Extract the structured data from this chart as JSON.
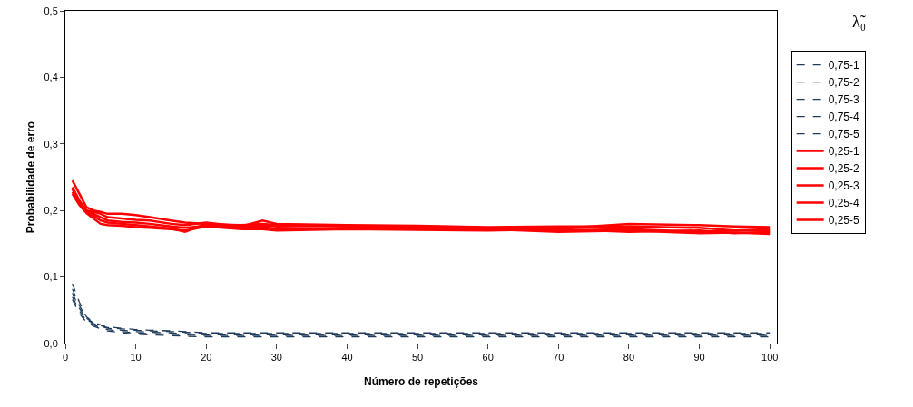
{
  "chart_data": {
    "type": "line",
    "xlabel": "Número de repetições",
    "ylabel": "Probabilidade de erro",
    "legend_title": "λ̃₀",
    "x": [
      1,
      2,
      3,
      4,
      5,
      6,
      8,
      10,
      12,
      15,
      17,
      20,
      25,
      28,
      30,
      40,
      50,
      60,
      70,
      80,
      90,
      95,
      100
    ],
    "xlim": [
      0,
      101
    ],
    "xticks": [
      0,
      10,
      20,
      30,
      40,
      50,
      60,
      70,
      80,
      90,
      100
    ],
    "ylim": [
      0,
      0.5
    ],
    "yticks": [
      {
        "value": 0,
        "label": "0,0"
      },
      {
        "value": 0.1,
        "label": "0,1"
      },
      {
        "value": 0.2,
        "label": "0,2"
      },
      {
        "value": 0.3,
        "label": "0,3"
      },
      {
        "value": 0.4,
        "label": "0,4"
      },
      {
        "value": 0.5,
        "label": "0,5"
      }
    ],
    "grid": false,
    "legend": "right",
    "marker": "none",
    "series": [
      {
        "name": "0,75-1",
        "color": "#1f3a5a",
        "line_style": "dashed",
        "values": [
          0.09,
          0.062,
          0.04,
          0.032,
          0.028,
          0.025,
          0.023,
          0.021,
          0.02,
          0.019,
          0.018,
          0.016,
          0.016,
          0.016,
          0.016,
          0.016,
          0.016,
          0.016,
          0.016,
          0.016,
          0.016,
          0.016,
          0.016
        ]
      },
      {
        "name": "0,75-2",
        "color": "#1f3a5a",
        "line_style": "dashed",
        "values": [
          0.082,
          0.057,
          0.038,
          0.031,
          0.027,
          0.024,
          0.022,
          0.02,
          0.019,
          0.018,
          0.017,
          0.015,
          0.015,
          0.015,
          0.015,
          0.015,
          0.015,
          0.015,
          0.015,
          0.015,
          0.015,
          0.015,
          0.015
        ]
      },
      {
        "name": "0,75-3",
        "color": "#1f3a5a",
        "line_style": "dashed",
        "values": [
          0.076,
          0.053,
          0.036,
          0.03,
          0.026,
          0.023,
          0.02,
          0.018,
          0.017,
          0.016,
          0.015,
          0.013,
          0.013,
          0.013,
          0.013,
          0.013,
          0.013,
          0.013,
          0.013,
          0.013,
          0.013,
          0.013,
          0.013
        ]
      },
      {
        "name": "0,75-4",
        "color": "#1f3a5a",
        "line_style": "dashed",
        "values": [
          0.07,
          0.049,
          0.034,
          0.028,
          0.024,
          0.021,
          0.018,
          0.016,
          0.015,
          0.014,
          0.013,
          0.012,
          0.012,
          0.012,
          0.012,
          0.012,
          0.012,
          0.012,
          0.012,
          0.012,
          0.012,
          0.012,
          0.012
        ]
      },
      {
        "name": "0,75-5",
        "color": "#1f3a5a",
        "line_style": "dashed",
        "values": [
          0.066,
          0.045,
          0.032,
          0.026,
          0.022,
          0.019,
          0.016,
          0.014,
          0.013,
          0.012,
          0.011,
          0.01,
          0.01,
          0.01,
          0.01,
          0.01,
          0.01,
          0.01,
          0.01,
          0.01,
          0.01,
          0.01,
          0.01
        ]
      },
      {
        "name": "0,25-1",
        "color": "#ff0000",
        "line_style": "solid",
        "values": [
          0.245,
          0.225,
          0.205,
          0.2,
          0.198,
          0.195,
          0.195,
          0.193,
          0.19,
          0.185,
          0.182,
          0.18,
          0.178,
          0.18,
          0.178,
          0.176,
          0.175,
          0.174,
          0.173,
          0.18,
          0.178,
          0.176,
          0.175
        ]
      },
      {
        "name": "0,25-2",
        "color": "#ff0000",
        "line_style": "solid",
        "values": [
          0.235,
          0.215,
          0.2,
          0.198,
          0.195,
          0.19,
          0.188,
          0.186,
          0.185,
          0.18,
          0.178,
          0.182,
          0.176,
          0.185,
          0.18,
          0.178,
          0.177,
          0.175,
          0.176,
          0.176,
          0.174,
          0.17,
          0.17
        ]
      },
      {
        "name": "0,25-3",
        "color": "#ff0000",
        "line_style": "solid",
        "values": [
          0.232,
          0.212,
          0.2,
          0.195,
          0.19,
          0.185,
          0.183,
          0.182,
          0.18,
          0.176,
          0.174,
          0.177,
          0.175,
          0.178,
          0.176,
          0.177,
          0.174,
          0.173,
          0.17,
          0.172,
          0.168,
          0.17,
          0.172
        ]
      },
      {
        "name": "0,25-4",
        "color": "#ff0000",
        "line_style": "solid",
        "values": [
          0.228,
          0.21,
          0.198,
          0.192,
          0.185,
          0.182,
          0.18,
          0.178,
          0.176,
          0.173,
          0.168,
          0.18,
          0.174,
          0.176,
          0.172,
          0.173,
          0.172,
          0.172,
          0.168,
          0.17,
          0.166,
          0.167,
          0.165
        ]
      },
      {
        "name": "0,25-5",
        "color": "#ff0000",
        "line_style": "solid",
        "values": [
          0.225,
          0.208,
          0.196,
          0.188,
          0.18,
          0.178,
          0.177,
          0.175,
          0.174,
          0.172,
          0.17,
          0.176,
          0.172,
          0.172,
          0.17,
          0.172,
          0.171,
          0.17,
          0.172,
          0.168,
          0.17,
          0.166,
          0.168
        ]
      }
    ]
  }
}
